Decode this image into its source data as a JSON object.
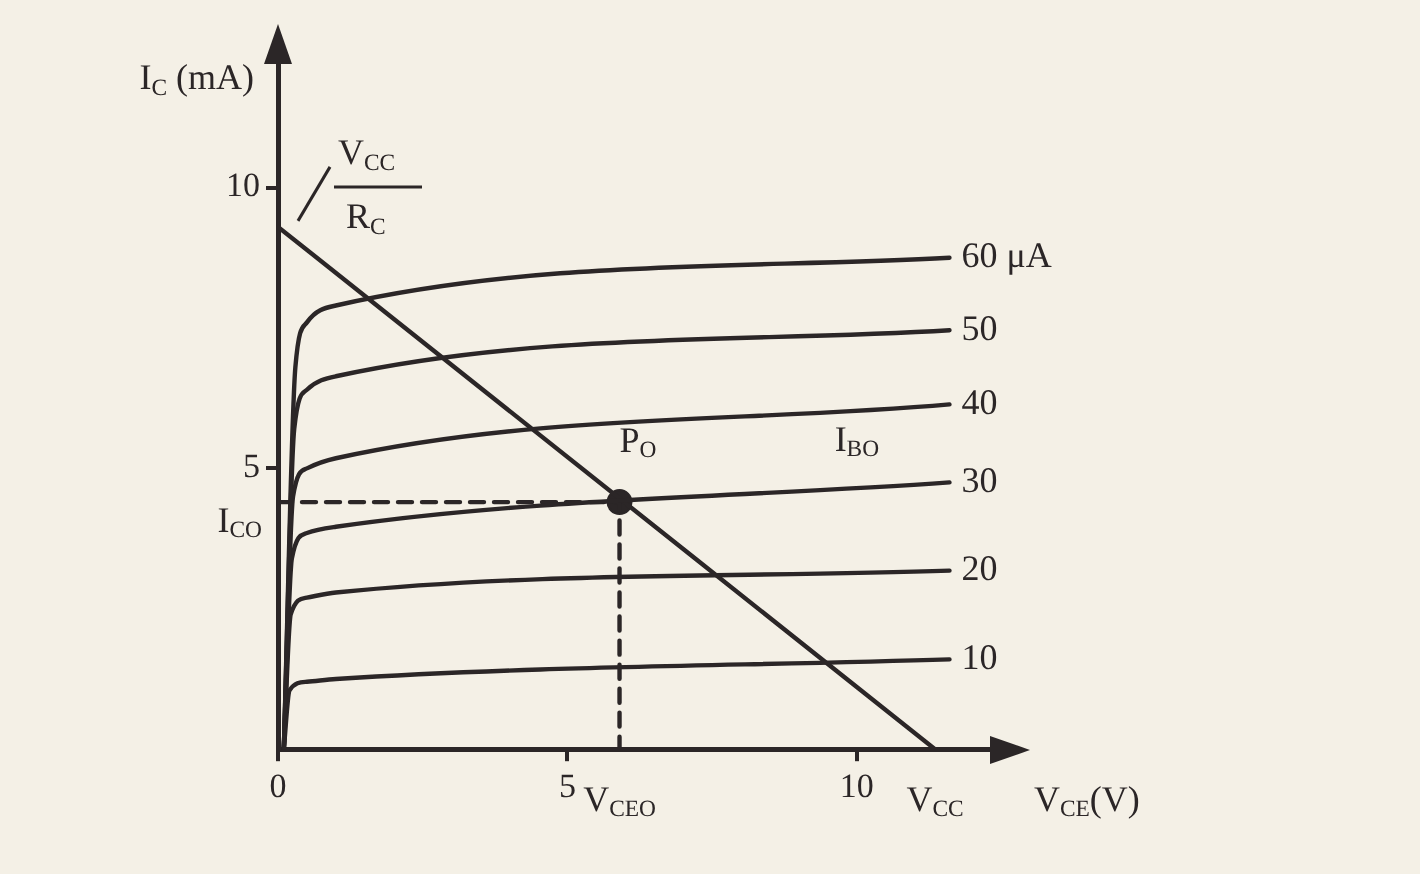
{
  "chart_data": {
    "type": "line",
    "xlabel": "V$_{CE}$(V)",
    "ylabel": "I$_{C}$ (mA)",
    "xlim": [
      0,
      12.3
    ],
    "ylim": [
      0,
      12.2
    ],
    "xticks": [
      0,
      5,
      10
    ],
    "yticks": [
      5,
      10
    ],
    "grid": false,
    "legend": false,
    "marker": "none",
    "line_style": "solid",
    "series": [
      {
        "name": "60 μA",
        "color": "#2b2627",
        "x": [
          0.1,
          0.3,
          0.5,
          1.0,
          11.6
        ],
        "values": [
          0,
          6.8,
          7.6,
          7.9,
          8.75
        ]
      },
      {
        "name": "50",
        "color": "#2b2627",
        "x": [
          0.1,
          0.28,
          0.5,
          1.0,
          11.6
        ],
        "values": [
          0,
          5.7,
          6.4,
          6.64,
          7.46
        ]
      },
      {
        "name": "40",
        "color": "#2b2627",
        "x": [
          0.1,
          0.26,
          0.5,
          1.0,
          11.6
        ],
        "values": [
          0,
          4.5,
          5.0,
          5.18,
          6.14
        ]
      },
      {
        "name": "30",
        "color": "#2b2627",
        "x": [
          0.1,
          0.24,
          0.5,
          1.0,
          11.6
        ],
        "values": [
          0,
          3.4,
          3.85,
          3.96,
          4.75
        ]
      },
      {
        "name": "20",
        "color": "#2b2627",
        "x": [
          0.1,
          0.22,
          0.5,
          1.0,
          11.6
        ],
        "values": [
          0,
          2.4,
          2.7,
          2.79,
          3.18
        ]
      },
      {
        "name": "10",
        "color": "#2b2627",
        "x": [
          0.1,
          0.2,
          0.5,
          1.0,
          11.6
        ],
        "values": [
          0,
          1.05,
          1.2,
          1.25,
          1.6
        ]
      },
      {
        "color": "#2b2627",
        "x": [
          0,
          11.35
        ],
        "values": [
          9.3,
          0
        ]
      },
      {
        "color": "#2b2627",
        "x": [
          0,
          5.9,
          5.9
        ],
        "values": [
          4.4,
          4.4,
          0
        ],
        "line_style": "dashed"
      },
      {
        "type": "scatter",
        "color": "#2b2627",
        "x": [
          5.9
        ],
        "values": [
          4.4
        ],
        "marker": "circle"
      }
    ],
    "annotations": [
      {
        "text": "V$_{CC}$",
        "x": 0,
        "y": 9.3
      },
      {
        "text": "R$_{C}$",
        "x": 0,
        "y": 9.3
      },
      {
        "text": "P$_{O}$",
        "x": 5.9,
        "y": 4.4
      },
      {
        "text": "I$_{BO}$",
        "x": 10,
        "y": 4.7
      },
      {
        "text": "I$_{CO}$",
        "x": 0,
        "y": 4.4
      },
      {
        "text": "V$_{CEO}$",
        "x": 5.9,
        "y": 0
      },
      {
        "text": "V$_{CC}$",
        "x": 11.35,
        "y": 0
      }
    ]
  }
}
